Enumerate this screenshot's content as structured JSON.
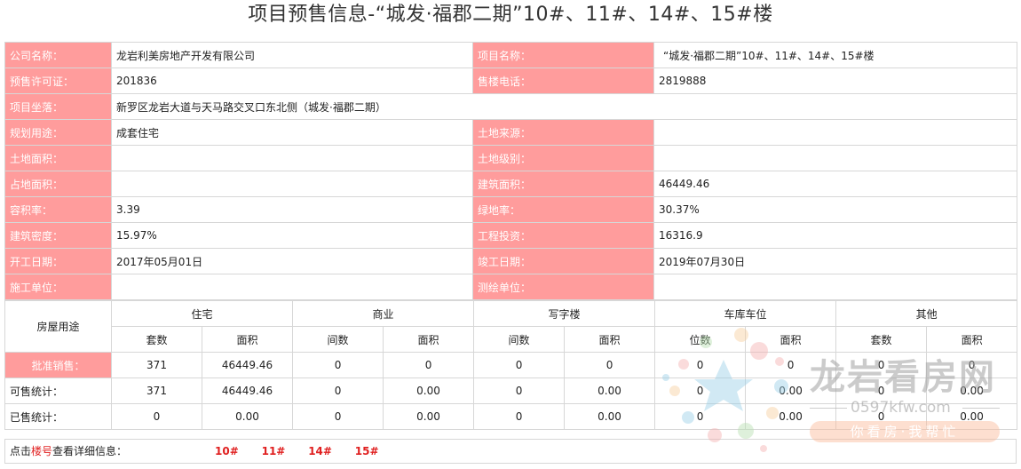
{
  "title": "项目预售信息-“城发·福郡二期”10#、11#、14#、15#楼",
  "info": {
    "company_label": "公司名称：",
    "company": "龙岩利美房地产开发有限公司",
    "project_label": "项目名称：",
    "project": "“城发·福郡二期”10#、11#、14#、15#楼",
    "permit_label": "预售许可证：",
    "permit": "201836",
    "phone_label": "售楼电话：",
    "phone": "2819888",
    "location_label": "项目坐落：",
    "location": "新罗区龙岩大道与天马路交叉口东北侧（城发·福郡二期）",
    "use_label": "规划用途：",
    "use": "成套住宅",
    "land_source_label": "土地来源：",
    "land_source": "",
    "land_area_label": "土地面积：",
    "land_area": "",
    "land_level_label": "土地级别：",
    "land_level": "",
    "occupied_area_label": "占地面积：",
    "occupied_area": "",
    "build_area_label": "建筑面积：",
    "build_area": "46449.46",
    "far_label": "容积率：",
    "far": "3.39",
    "green_label": "绿地率：",
    "green": "30.37%",
    "density_label": "建筑密度：",
    "density": "15.97%",
    "invest_label": "工程投资：",
    "invest": "16316.9",
    "start_label": "开工日期：",
    "start": "2017年05月01日",
    "finish_label": "竣工日期：",
    "finish": "2019年07月30日",
    "builder_label": "施工单位：",
    "builder": "",
    "survey_label": "测绘单位：",
    "survey": ""
  },
  "stats": {
    "corner": "房屋用途",
    "groups": [
      "住宅",
      "商业",
      "写字楼",
      "车库车位",
      "其他"
    ],
    "subheads": [
      "套数",
      "面积",
      "间数",
      "面积",
      "间数",
      "面积",
      "位数",
      "面积",
      "套数",
      "面积"
    ],
    "rows": [
      {
        "label": "批准销售：",
        "values": [
          "371",
          "46449.46",
          "0",
          "0",
          "0",
          "0",
          "0",
          "0",
          "0",
          "0"
        ]
      },
      {
        "label": "可售统计：",
        "values": [
          "371",
          "46449.46",
          "0",
          "0.00",
          "0",
          "0.00",
          "0",
          "0.00",
          "0",
          "0.00"
        ]
      },
      {
        "label": "已售统计：",
        "values": [
          "0",
          "0.00",
          "0",
          "0.00",
          "0",
          "0.00",
          "0",
          "0.00",
          "0",
          "0.00"
        ]
      }
    ]
  },
  "bottom": {
    "prefix": "点击",
    "highlight": "楼号",
    "suffix": "查看详细信息：",
    "buildings": [
      "10#",
      "11#",
      "14#",
      "15#"
    ]
  },
  "watermark": {
    "brand": "龙岩看房网",
    "url": "0597kfw.com",
    "slogan": "你看房·我帮忙"
  }
}
